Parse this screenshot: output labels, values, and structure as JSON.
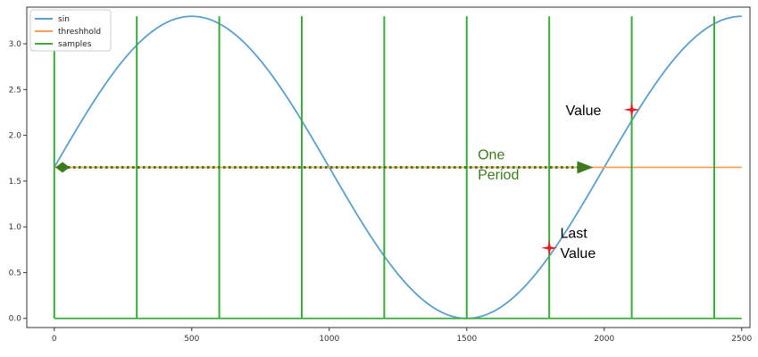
{
  "chart_data": {
    "type": "line",
    "xlim": [
      -100,
      2530
    ],
    "ylim": [
      -0.1,
      3.4
    ],
    "x_ticks": [
      0,
      500,
      1000,
      1500,
      2000,
      2500
    ],
    "x_tick_labels": [
      "0",
      "500",
      "1000",
      "1500",
      "2000",
      "2500"
    ],
    "y_ticks": [
      0.0,
      0.5,
      1.0,
      1.5,
      2.0,
      2.5,
      3.0
    ],
    "y_tick_labels": [
      "0.0",
      "0.5",
      "1.0",
      "1.5",
      "2.0",
      "2.5",
      "3.0"
    ],
    "grid": false,
    "legend_position": "upper-left",
    "series": [
      {
        "name": "sin",
        "color": "#5b9fca",
        "kind": "sine",
        "amplitude": 1.65,
        "offset": 1.65,
        "period": 2000,
        "x_range": [
          0,
          2500
        ]
      },
      {
        "name": "threshhold",
        "color": "#f5a15c",
        "kind": "constant",
        "y": 1.65,
        "x_range": [
          0,
          2500
        ]
      },
      {
        "name": "samples",
        "color": "#3aaa3a",
        "kind": "pulses",
        "x": [
          0,
          300,
          600,
          900,
          1200,
          1500,
          1800,
          2100,
          2400
        ],
        "height": 3.3,
        "x_range": [
          0,
          2500
        ]
      }
    ],
    "annotations": [
      {
        "text": "One",
        "color": "#3d7a1e",
        "x": 1540,
        "y": 1.74
      },
      {
        "text": "Period",
        "color": "#3d7a1e",
        "x": 1540,
        "y": 1.52
      },
      {
        "text": "Value",
        "color": "#000000",
        "x": 1860,
        "y": 2.22
      },
      {
        "text": "Last",
        "color": "#000000",
        "x": 1840,
        "y": 0.88
      },
      {
        "text": "Value",
        "color": "#000000",
        "x": 1840,
        "y": 0.66
      }
    ],
    "period_arrow": {
      "from": 30,
      "to": 1960,
      "y": 1.65,
      "color": "#3d7a1e"
    },
    "markers": [
      {
        "name": "value-marker",
        "x": 2100,
        "y": 2.28,
        "color": "#e02020"
      },
      {
        "name": "last-value-marker",
        "x": 1800,
        "y": 0.77,
        "color": "#e02020"
      }
    ]
  }
}
